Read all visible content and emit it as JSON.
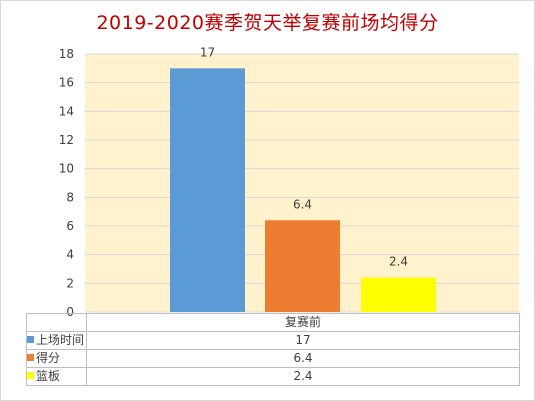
{
  "chart_data": {
    "type": "bar",
    "title": "2019-2020赛季贺天举复赛前场均得分",
    "categories": [
      "复赛前"
    ],
    "series": [
      {
        "name": "上场时间",
        "values": [
          17
        ],
        "color": "#5b9bd5"
      },
      {
        "name": "得分",
        "values": [
          6.4
        ],
        "color": "#ed7d31"
      },
      {
        "name": "篮板",
        "values": [
          2.4
        ],
        "color": "#ffff00"
      }
    ],
    "data_labels": [
      "17",
      "6.4",
      "2.4"
    ],
    "ylim": [
      0,
      18
    ],
    "yticks": [
      "0",
      "2",
      "4",
      "6",
      "8",
      "10",
      "12",
      "14",
      "16",
      "18"
    ],
    "grid": true,
    "plot_background": "#fff2cc",
    "legend": "data-table",
    "table_values": [
      "17",
      "6.4",
      "2.4"
    ]
  }
}
